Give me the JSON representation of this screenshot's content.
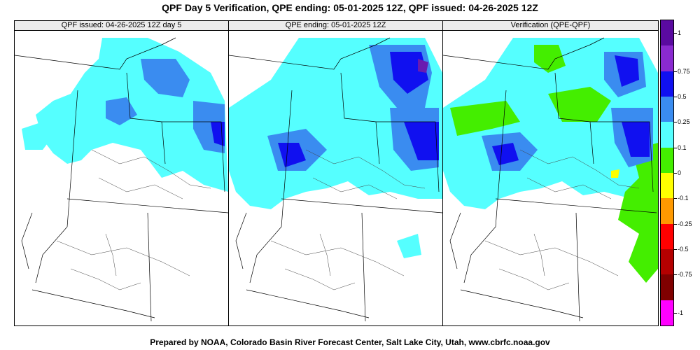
{
  "title": "QPF Day 5 Verification, QPE ending: 05-01-2025 12Z, QPF issued: 04-26-2025 12Z",
  "footer": "Prepared by NOAA, Colorado Basin River Forecast Center, Salt Lake City, Utah, www.cbrfc.noaa.gov",
  "panels": [
    {
      "label": "QPF issued: 04-26-2025 12Z day 5"
    },
    {
      "label": "QPE ending: 05-01-2025 12Z"
    },
    {
      "label": "Verification (QPE-QPF)"
    }
  ],
  "colorbar": {
    "segments": [
      {
        "color": "#5a0aa0"
      },
      {
        "color": "#8a2ad0"
      },
      {
        "color": "#1010f0"
      },
      {
        "color": "#3a8cf0"
      },
      {
        "color": "#55ffff"
      },
      {
        "color": "#44ee00"
      },
      {
        "color": "#ffff00"
      },
      {
        "color": "#ff9900"
      },
      {
        "color": "#ff0000"
      },
      {
        "color": "#b40000"
      },
      {
        "color": "#800000"
      },
      {
        "color": "#ff00ff"
      }
    ],
    "labels": [
      "1",
      "0.75",
      "0.5",
      "0.25",
      "0.1",
      "0",
      "-0.1",
      "-0.25",
      "-0.5",
      "-0.75",
      "-1"
    ]
  },
  "map_colors": {
    "light_cyan": "#55ffff",
    "light_blue": "#3a8cf0",
    "blue": "#1010f0",
    "purple": "#6a1ab0",
    "green": "#44ee00"
  }
}
